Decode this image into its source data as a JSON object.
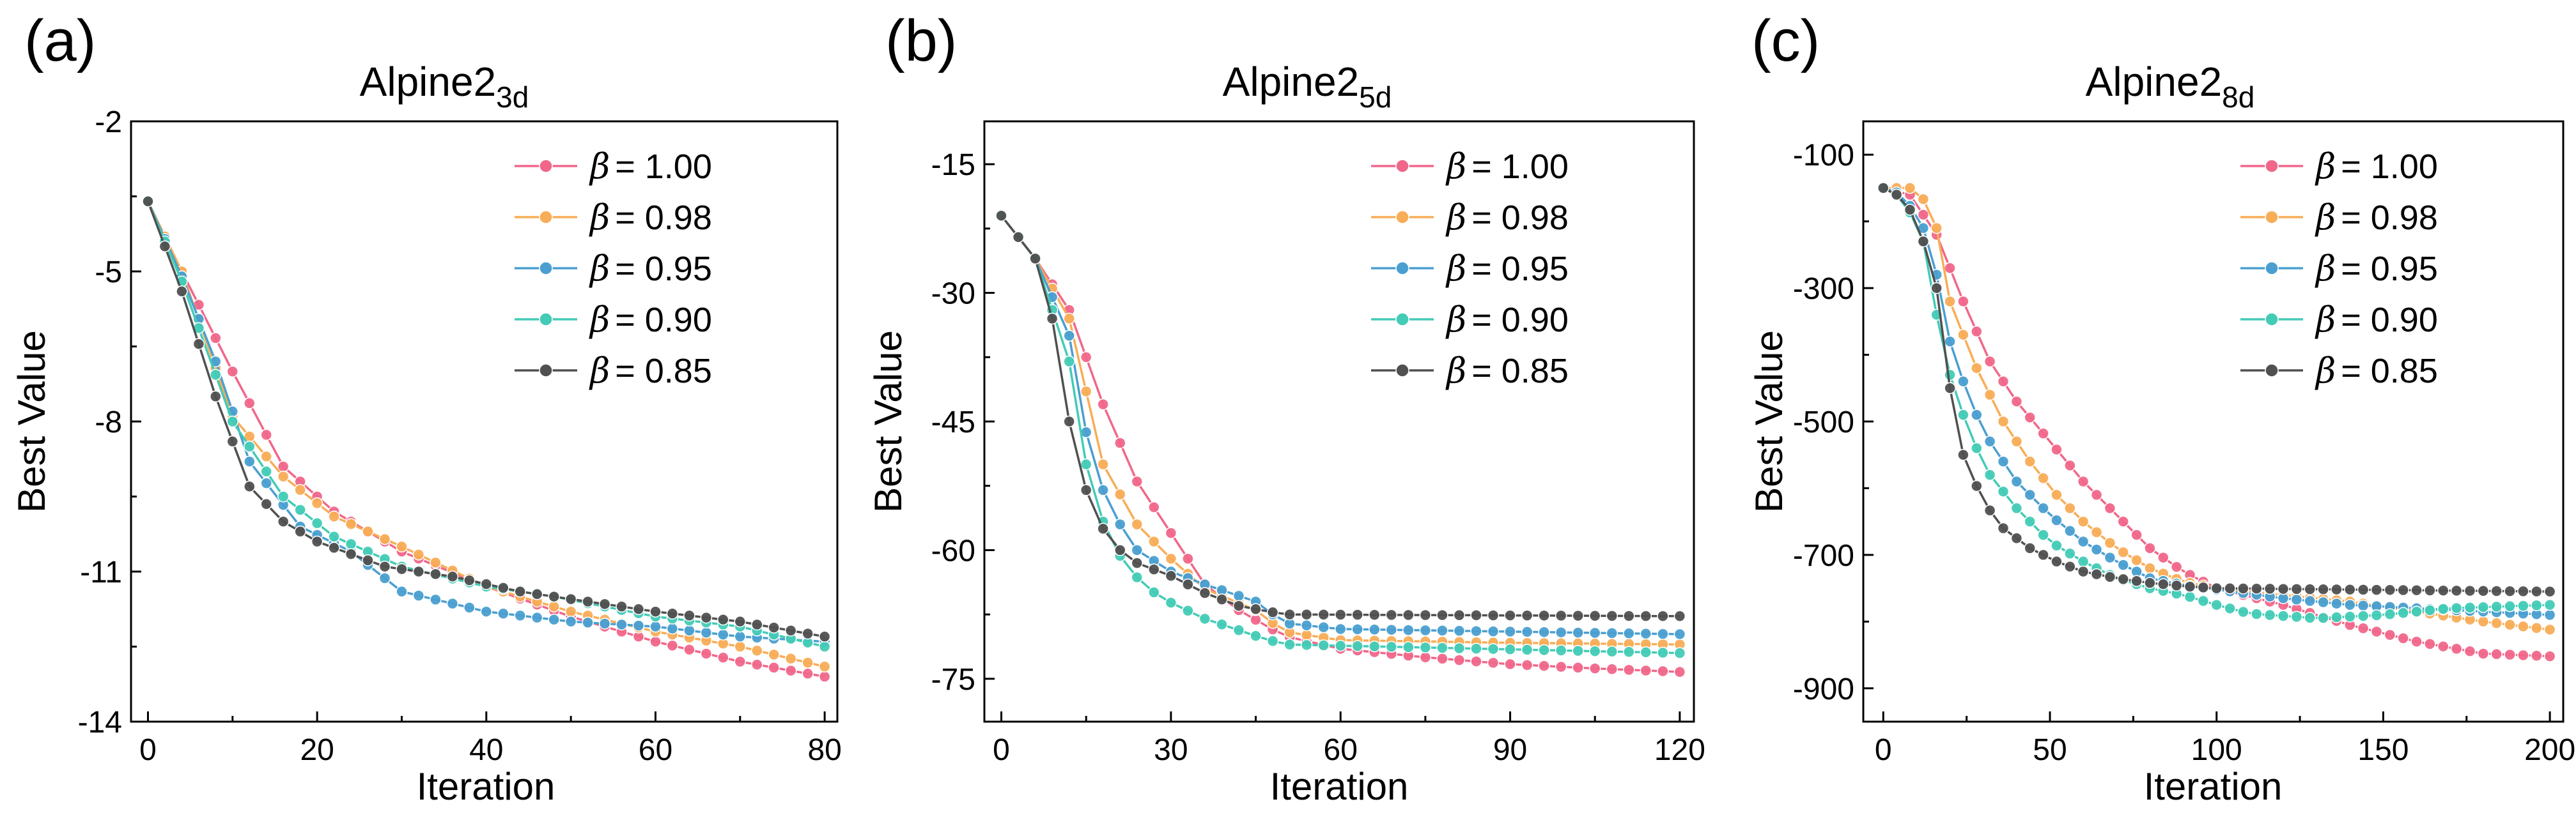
{
  "figure": {
    "colors": {
      "s100": "#f0678a",
      "s098": "#f8ad57",
      "s095": "#4a9fd0",
      "s090": "#43cbb6",
      "s085": "#505050"
    }
  },
  "chart_data": [
    {
      "type": "line",
      "panel_label": "(a)",
      "title_base": "Alpine2",
      "title_sub": "3d",
      "xlabel": "Iteration",
      "ylabel": "Best Value",
      "xlim": [
        -2,
        81.5
      ],
      "ylim": [
        -14,
        -2
      ],
      "xticks": [
        0,
        20,
        40,
        60,
        80
      ],
      "yticks": [
        -14,
        -11,
        -8,
        -5,
        -2
      ],
      "legend_position": "top-right",
      "legend_symbol": "β",
      "grid": false,
      "series": [
        {
          "name": "1.00",
          "label": "= 1.00",
          "color_key": "s100",
          "x_max": 80,
          "step": 2,
          "anchors": [
            [
              0,
              -3.6
            ],
            [
              4,
              -5.0
            ],
            [
              10,
              -7.0
            ],
            [
              16,
              -8.9
            ],
            [
              22,
              -9.8
            ],
            [
              30,
              -10.6
            ],
            [
              40,
              -11.3
            ],
            [
              50,
              -11.9
            ],
            [
              60,
              -12.4
            ],
            [
              70,
              -12.8
            ],
            [
              80,
              -13.1
            ]
          ]
        },
        {
          "name": "0.98",
          "label": "= 0.98",
          "color_key": "s098",
          "x_max": 80,
          "step": 2,
          "anchors": [
            [
              0,
              -3.6
            ],
            [
              4,
              -5.0
            ],
            [
              10,
              -7.9
            ],
            [
              16,
              -9.1
            ],
            [
              22,
              -9.9
            ],
            [
              30,
              -10.5
            ],
            [
              40,
              -11.3
            ],
            [
              50,
              -11.8
            ],
            [
              60,
              -12.2
            ],
            [
              70,
              -12.5
            ],
            [
              80,
              -12.9
            ]
          ]
        },
        {
          "name": "0.95",
          "label": "= 0.95",
          "color_key": "s095",
          "x_max": 80,
          "step": 2,
          "anchors": [
            [
              0,
              -3.6
            ],
            [
              4,
              -5.1
            ],
            [
              8,
              -6.8
            ],
            [
              12,
              -8.8
            ],
            [
              18,
              -10.1
            ],
            [
              24,
              -10.6
            ],
            [
              30,
              -11.4
            ],
            [
              40,
              -11.8
            ],
            [
              50,
              -12.0
            ],
            [
              60,
              -12.1
            ],
            [
              70,
              -12.3
            ],
            [
              80,
              -12.4
            ]
          ]
        },
        {
          "name": "0.90",
          "label": "= 0.90",
          "color_key": "s090",
          "x_max": 80,
          "step": 2,
          "anchors": [
            [
              0,
              -3.6
            ],
            [
              4,
              -5.2
            ],
            [
              10,
              -8.0
            ],
            [
              16,
              -9.5
            ],
            [
              22,
              -10.3
            ],
            [
              30,
              -10.9
            ],
            [
              40,
              -11.3
            ],
            [
              48,
              -11.5
            ],
            [
              60,
              -11.9
            ],
            [
              70,
              -12.1
            ],
            [
              80,
              -12.5
            ]
          ]
        },
        {
          "name": "0.85",
          "label": "= 0.85",
          "color_key": "s085",
          "x_max": 80,
          "step": 2,
          "anchors": [
            [
              0,
              -3.6
            ],
            [
              4,
              -5.4
            ],
            [
              8,
              -7.5
            ],
            [
              12,
              -9.3
            ],
            [
              16,
              -10.0
            ],
            [
              20,
              -10.4
            ],
            [
              28,
              -10.9
            ],
            [
              36,
              -11.1
            ],
            [
              44,
              -11.4
            ],
            [
              52,
              -11.6
            ],
            [
              60,
              -11.8
            ],
            [
              70,
              -12.0
            ],
            [
              80,
              -12.3
            ]
          ]
        }
      ]
    },
    {
      "type": "line",
      "panel_label": "(b)",
      "title_base": "Alpine2",
      "title_sub": "5d",
      "xlabel": "Iteration",
      "ylabel": "Best Value",
      "xlim": [
        -3,
        122.5
      ],
      "ylim": [
        -80,
        -10
      ],
      "xticks": [
        0,
        30,
        60,
        90,
        120
      ],
      "yticks": [
        -75,
        -60,
        -45,
        -30,
        -15
      ],
      "legend_position": "top-right",
      "legend_symbol": "β",
      "grid": false,
      "series": [
        {
          "name": "1.00",
          "label": "= 1.00",
          "color_key": "s100",
          "x_max": 120,
          "step": 3,
          "anchors": [
            [
              0,
              -21
            ],
            [
              6,
              -26
            ],
            [
              12,
              -32
            ],
            [
              18,
              -43
            ],
            [
              24,
              -52
            ],
            [
              30,
              -58
            ],
            [
              36,
              -64
            ],
            [
              42,
              -67
            ],
            [
              50,
              -70
            ],
            [
              60,
              -71.5
            ],
            [
              75,
              -72.5
            ],
            [
              90,
              -73.3
            ],
            [
              105,
              -73.8
            ],
            [
              120,
              -74.2
            ]
          ]
        },
        {
          "name": "0.98",
          "label": "= 0.98",
          "color_key": "s098",
          "x_max": 120,
          "step": 3,
          "anchors": [
            [
              0,
              -21
            ],
            [
              6,
              -26
            ],
            [
              12,
              -33
            ],
            [
              18,
              -50
            ],
            [
              24,
              -57
            ],
            [
              30,
              -61
            ],
            [
              36,
              -64.5
            ],
            [
              45,
              -67
            ],
            [
              50,
              -69.5
            ],
            [
              60,
              -70.5
            ],
            [
              90,
              -70.8
            ],
            [
              120,
              -71
            ]
          ]
        },
        {
          "name": "0.95",
          "label": "= 0.95",
          "color_key": "s095",
          "x_max": 120,
          "step": 3,
          "anchors": [
            [
              0,
              -21
            ],
            [
              6,
              -26
            ],
            [
              12,
              -35
            ],
            [
              16,
              -50
            ],
            [
              20,
              -56
            ],
            [
              24,
              -60
            ],
            [
              30,
              -62.5
            ],
            [
              36,
              -64
            ],
            [
              45,
              -66
            ],
            [
              50,
              -68.5
            ],
            [
              60,
              -69.2
            ],
            [
              120,
              -69.8
            ]
          ]
        },
        {
          "name": "0.90",
          "label": "= 0.90",
          "color_key": "s090",
          "x_max": 120,
          "step": 3,
          "anchors": [
            [
              0,
              -21
            ],
            [
              6,
              -26
            ],
            [
              12,
              -38
            ],
            [
              16,
              -54
            ],
            [
              22,
              -62
            ],
            [
              28,
              -65.5
            ],
            [
              36,
              -68
            ],
            [
              45,
              -70
            ],
            [
              50,
              -71
            ],
            [
              120,
              -72
            ]
          ]
        },
        {
          "name": "0.85",
          "label": "= 0.85",
          "color_key": "s085",
          "x_max": 120,
          "step": 3,
          "anchors": [
            [
              0,
              -21
            ],
            [
              6,
              -26
            ],
            [
              9,
              -33
            ],
            [
              12,
              -45
            ],
            [
              15,
              -53
            ],
            [
              18,
              -57.5
            ],
            [
              21,
              -60
            ],
            [
              24,
              -61.5
            ],
            [
              30,
              -63
            ],
            [
              36,
              -65
            ],
            [
              42,
              -66.5
            ],
            [
              50,
              -67.5
            ],
            [
              120,
              -67.7
            ]
          ]
        }
      ]
    },
    {
      "type": "line",
      "panel_label": "(c)",
      "title_base": "Alpine2",
      "title_sub": "8d",
      "xlabel": "Iteration",
      "ylabel": "Best Value",
      "xlim": [
        -6,
        204
      ],
      "ylim": [
        -950,
        -50
      ],
      "xticks": [
        0,
        50,
        100,
        150,
        200
      ],
      "yticks": [
        -900,
        -700,
        -500,
        -300,
        -100
      ],
      "legend_position": "top-right",
      "legend_symbol": "β",
      "grid": false,
      "series": [
        {
          "name": "1.00",
          "label": "= 1.00",
          "color_key": "s100",
          "x_max": 200,
          "step": 4,
          "anchors": [
            [
              0,
              -150
            ],
            [
              8,
              -160
            ],
            [
              16,
              -220
            ],
            [
              24,
              -320
            ],
            [
              32,
              -410
            ],
            [
              40,
              -470
            ],
            [
              50,
              -530
            ],
            [
              60,
              -590
            ],
            [
              70,
              -640
            ],
            [
              80,
              -690
            ],
            [
              90,
              -725
            ],
            [
              100,
              -750
            ],
            [
              120,
              -775
            ],
            [
              140,
              -805
            ],
            [
              160,
              -830
            ],
            [
              180,
              -848
            ],
            [
              200,
              -852
            ]
          ]
        },
        {
          "name": "0.98",
          "label": "= 0.98",
          "color_key": "s098",
          "x_max": 200,
          "step": 4,
          "anchors": [
            [
              0,
              -150
            ],
            [
              8,
              -150
            ],
            [
              14,
              -175
            ],
            [
              16,
              -210
            ],
            [
              20,
              -320
            ],
            [
              28,
              -420
            ],
            [
              36,
              -500
            ],
            [
              44,
              -560
            ],
            [
              52,
              -610
            ],
            [
              60,
              -650
            ],
            [
              70,
              -690
            ],
            [
              80,
              -720
            ],
            [
              90,
              -740
            ],
            [
              100,
              -750
            ],
            [
              120,
              -760
            ],
            [
              140,
              -770
            ],
            [
              160,
              -785
            ],
            [
              180,
              -800
            ],
            [
              200,
              -812
            ]
          ]
        },
        {
          "name": "0.95",
          "label": "= 0.95",
          "color_key": "s095",
          "x_max": 200,
          "step": 4,
          "anchors": [
            [
              0,
              -150
            ],
            [
              6,
              -160
            ],
            [
              12,
              -210
            ],
            [
              16,
              -280
            ],
            [
              20,
              -380
            ],
            [
              26,
              -470
            ],
            [
              32,
              -530
            ],
            [
              40,
              -590
            ],
            [
              50,
              -640
            ],
            [
              60,
              -680
            ],
            [
              70,
              -710
            ],
            [
              80,
              -735
            ],
            [
              90,
              -745
            ],
            [
              100,
              -752
            ],
            [
              120,
              -765
            ],
            [
              140,
              -775
            ],
            [
              160,
              -780
            ],
            [
              180,
              -785
            ],
            [
              200,
              -790
            ]
          ]
        },
        {
          "name": "0.90",
          "label": "= 0.90",
          "color_key": "s090",
          "x_max": 200,
          "step": 4,
          "anchors": [
            [
              0,
              -150
            ],
            [
              6,
              -165
            ],
            [
              12,
              -230
            ],
            [
              16,
              -340
            ],
            [
              20,
              -430
            ],
            [
              26,
              -520
            ],
            [
              32,
              -580
            ],
            [
              40,
              -630
            ],
            [
              50,
              -680
            ],
            [
              60,
              -710
            ],
            [
              70,
              -735
            ],
            [
              80,
              -750
            ],
            [
              90,
              -760
            ],
            [
              100,
              -775
            ],
            [
              110,
              -788
            ],
            [
              130,
              -795
            ],
            [
              150,
              -790
            ],
            [
              170,
              -780
            ],
            [
              200,
              -775
            ]
          ]
        },
        {
          "name": "0.85",
          "label": "= 0.85",
          "color_key": "s085",
          "x_max": 200,
          "step": 4,
          "anchors": [
            [
              0,
              -150
            ],
            [
              6,
              -165
            ],
            [
              10,
              -200
            ],
            [
              12,
              -230
            ],
            [
              16,
              -300
            ],
            [
              20,
              -450
            ],
            [
              24,
              -550
            ],
            [
              30,
              -620
            ],
            [
              36,
              -660
            ],
            [
              44,
              -690
            ],
            [
              52,
              -710
            ],
            [
              60,
              -725
            ],
            [
              70,
              -735
            ],
            [
              80,
              -742
            ],
            [
              90,
              -747
            ],
            [
              100,
              -750
            ],
            [
              140,
              -752
            ],
            [
              200,
              -755
            ]
          ]
        }
      ]
    }
  ]
}
